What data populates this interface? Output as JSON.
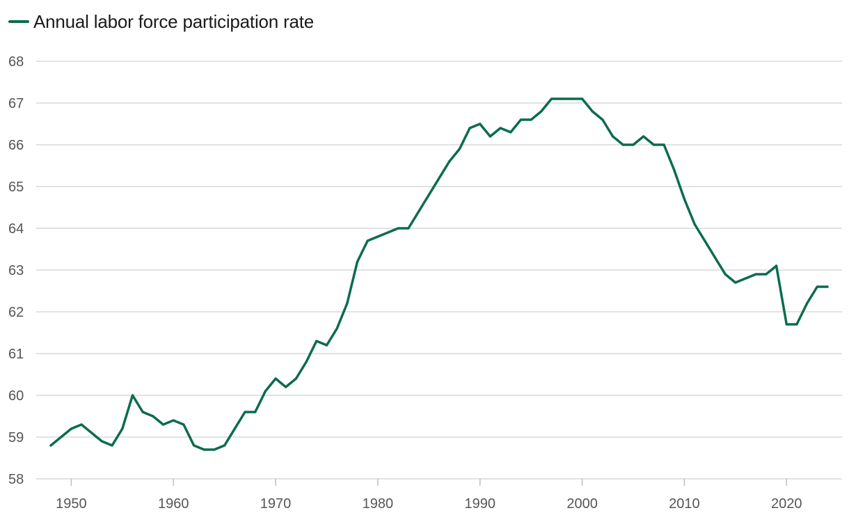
{
  "chart_data": {
    "type": "line",
    "title": "",
    "xlabel": "",
    "ylabel": "",
    "legend_position": "top-left",
    "grid": true,
    "ylim": [
      58,
      68
    ],
    "xlim": [
      1948,
      2024
    ],
    "y_ticks": [
      58,
      59,
      60,
      61,
      62,
      63,
      64,
      65,
      66,
      67,
      68
    ],
    "x_ticks": [
      1950,
      1960,
      1970,
      1980,
      1990,
      2000,
      2010,
      2020
    ],
    "series": [
      {
        "name": "Annual labor force participation rate",
        "color": "#0b6b50",
        "x": [
          1948,
          1949,
          1950,
          1951,
          1952,
          1953,
          1954,
          1955,
          1956,
          1957,
          1958,
          1959,
          1960,
          1961,
          1962,
          1963,
          1964,
          1965,
          1966,
          1967,
          1968,
          1969,
          1970,
          1971,
          1972,
          1973,
          1974,
          1975,
          1976,
          1977,
          1978,
          1979,
          1980,
          1981,
          1982,
          1983,
          1984,
          1985,
          1986,
          1987,
          1988,
          1989,
          1990,
          1991,
          1992,
          1993,
          1994,
          1995,
          1996,
          1997,
          1998,
          1999,
          2000,
          2001,
          2002,
          2003,
          2004,
          2005,
          2006,
          2007,
          2008,
          2009,
          2010,
          2011,
          2012,
          2013,
          2014,
          2015,
          2016,
          2017,
          2018,
          2019,
          2020,
          2021,
          2022,
          2023,
          2024
        ],
        "values": [
          58.8,
          59.0,
          59.2,
          59.3,
          59.1,
          58.9,
          58.8,
          59.2,
          60.0,
          59.6,
          59.5,
          59.3,
          59.4,
          59.3,
          58.8,
          58.7,
          58.7,
          58.8,
          59.2,
          59.6,
          59.6,
          60.1,
          60.4,
          60.2,
          60.4,
          60.8,
          61.3,
          61.2,
          61.6,
          62.2,
          63.2,
          63.7,
          63.8,
          63.9,
          64.0,
          64.0,
          64.4,
          64.8,
          65.2,
          65.6,
          65.9,
          66.4,
          66.5,
          66.2,
          66.4,
          66.3,
          66.6,
          66.6,
          66.8,
          67.1,
          67.1,
          67.1,
          67.1,
          66.8,
          66.6,
          66.2,
          66.0,
          66.0,
          66.2,
          66.0,
          66.0,
          65.4,
          64.7,
          64.1,
          63.7,
          63.3,
          62.9,
          62.7,
          62.8,
          62.9,
          62.9,
          63.1,
          61.7,
          61.7,
          62.2,
          62.6,
          62.6
        ]
      }
    ]
  }
}
